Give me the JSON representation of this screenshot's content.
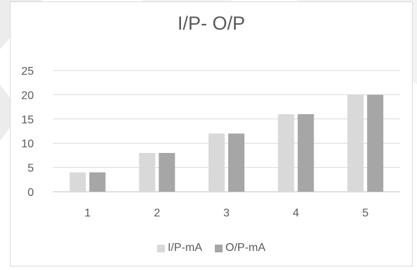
{
  "chart_data": {
    "type": "bar",
    "title": "I/P- O/P",
    "categories": [
      "1",
      "2",
      "3",
      "4",
      "5"
    ],
    "series": [
      {
        "name": "I/P-mA",
        "values": [
          4,
          8,
          12,
          16,
          20
        ],
        "color": "#d9d9d9"
      },
      {
        "name": "O/P-mA",
        "values": [
          4,
          8,
          12,
          16,
          20
        ],
        "color": "#a6a6a6"
      }
    ],
    "ylim": [
      0,
      25
    ],
    "yticks": [
      "0",
      "5",
      "10",
      "15",
      "20",
      "25"
    ],
    "grid": true,
    "legend_position": "bottom"
  },
  "colors": {
    "backdrop_gray": "#ececec",
    "frame_border": "#d9d9d9",
    "gridline": "#d9d9d9",
    "text": "#595959"
  }
}
